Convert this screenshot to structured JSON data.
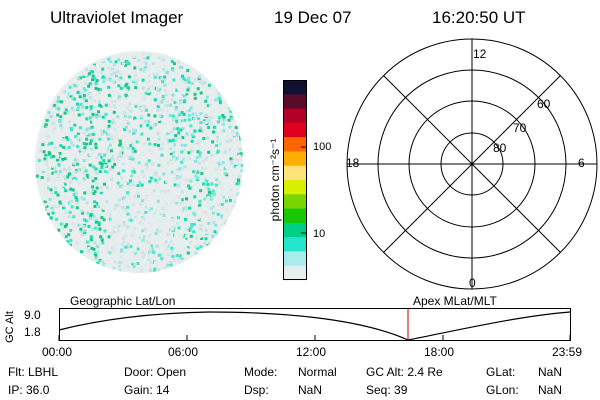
{
  "header": {
    "title": "Ultraviolet Imager",
    "date": "19 Dec 07",
    "time": "16:20:50 UT"
  },
  "colorbar": {
    "label": "photon cm⁻²s⁻¹",
    "ticks": [
      "100",
      "10"
    ],
    "colors": [
      "#111133",
      "#5a0a2a",
      "#b40028",
      "#e0001e",
      "#ff6600",
      "#ffae00",
      "#ffe37a",
      "#d8f000",
      "#7ad400",
      "#19c800",
      "#00cf86",
      "#24e6cc",
      "#a8ecec",
      "#e6eeee"
    ]
  },
  "polar_plot": {
    "top_label": "12",
    "bottom_label": "0",
    "left_label": "18",
    "right_label": "6",
    "ring_labels": [
      "60",
      "70",
      "80"
    ]
  },
  "timeline": {
    "left_title": "Geographic Lat/Lon",
    "right_title": "Apex MLat/MLT",
    "y_axis_label": "GC Alt",
    "y_ticks": [
      "9.0",
      "1.8"
    ],
    "x_ticks": [
      "00:00",
      "06:00",
      "12:00",
      "18:00",
      "23:59"
    ],
    "marker_time": "16:20:50"
  },
  "info": {
    "flt": "Flt: LBHL",
    "ip": "IP: 36.0",
    "door": "Door: Open",
    "gain": "Gain: 14",
    "mode_label": "Mode:",
    "mode_value": "Normal",
    "dsp_label": "Dsp:",
    "dsp_value": "NaN",
    "gc_alt": "GC Alt: 2.4 Re",
    "seq": "Seq: 39",
    "glat_label": "GLat:",
    "glat_value": "NaN",
    "glon_label": "GLon:",
    "glon_value": "NaN"
  },
  "image_palette": [
    "#e4ecec",
    "#d2e4e6",
    "#b7e4e8",
    "#86e6df",
    "#3ee8c8",
    "#16d9b4",
    "#18c786"
  ]
}
